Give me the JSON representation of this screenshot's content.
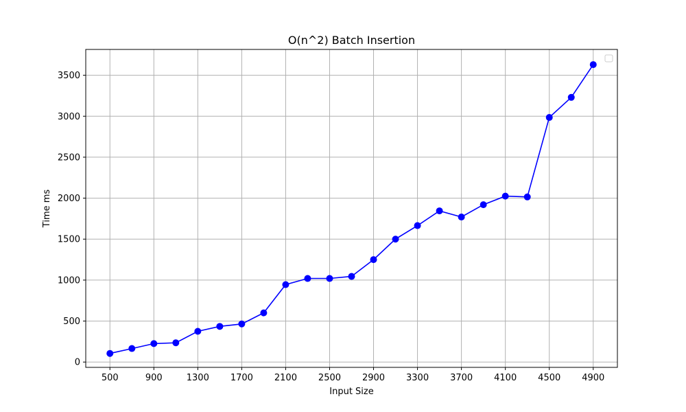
{
  "chart_data": {
    "type": "line",
    "title": "O(n^2) Batch Insertion",
    "xlabel": "Input Size",
    "ylabel": "Time ms",
    "x_ticks": [
      500,
      900,
      1300,
      1700,
      2100,
      2500,
      2900,
      3300,
      3700,
      4100,
      4500,
      4900
    ],
    "y_ticks": [
      0,
      500,
      1000,
      1500,
      2000,
      2500,
      3000,
      3500
    ],
    "xlim": [
      280,
      5120
    ],
    "ylim": [
      -65,
      3815
    ],
    "grid": true,
    "legend": "upper right (empty)",
    "series": [
      {
        "color": "#0000ff",
        "marker": "circle",
        "x": [
          500,
          700,
          900,
          1100,
          1300,
          1500,
          1700,
          1900,
          2100,
          2300,
          2500,
          2700,
          2900,
          3100,
          3300,
          3500,
          3700,
          3900,
          4100,
          4300,
          4500,
          4700,
          4900
        ],
        "y": [
          105,
          165,
          225,
          235,
          375,
          435,
          465,
          600,
          945,
          1020,
          1020,
          1045,
          1250,
          1500,
          1665,
          1845,
          1770,
          1920,
          2025,
          2015,
          2985,
          3230,
          3630
        ]
      }
    ]
  }
}
